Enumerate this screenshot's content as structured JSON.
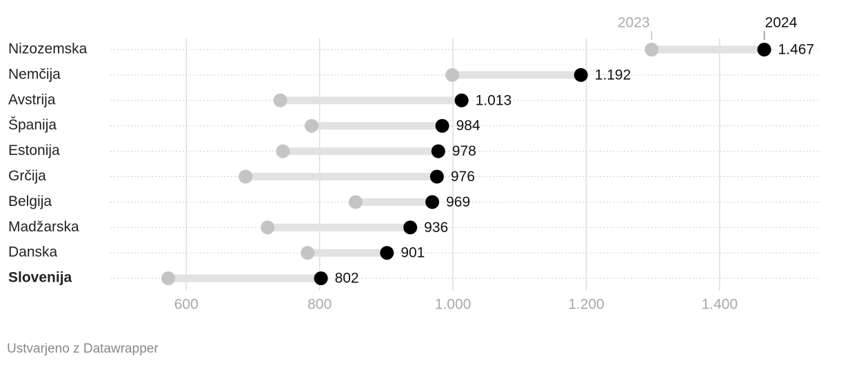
{
  "chart_data": {
    "type": "dumbbell",
    "categories": [
      "Nizozemska",
      "Nemčija",
      "Avstrija",
      "Španija",
      "Estonija",
      "Grčija",
      "Belgija",
      "Madžarska",
      "Danska",
      "Slovenija"
    ],
    "highlight_category": "Slovenija",
    "series": [
      {
        "name": "2023",
        "color": "#c4c4c4",
        "values": [
          1298,
          999,
          741,
          788,
          745,
          689,
          854,
          722,
          782,
          573
        ]
      },
      {
        "name": "2024",
        "color": "#000000",
        "values": [
          1467,
          1192,
          1013,
          984,
          978,
          976,
          969,
          936,
          901,
          802
        ],
        "value_labels": [
          "1.467",
          "1.192",
          "1.013",
          "984",
          "978",
          "976",
          "969",
          "936",
          "901",
          "802"
        ]
      }
    ],
    "xlim": [
      486,
      1548
    ],
    "xticks": [
      600,
      800,
      {
        "value": 1000,
        "label": "1.000"
      },
      {
        "value": 1200,
        "label": "1.200"
      },
      {
        "value": 1400,
        "label": "1.400"
      }
    ],
    "grid": true,
    "footer": "Ustvarjeno z Datawrapper"
  }
}
